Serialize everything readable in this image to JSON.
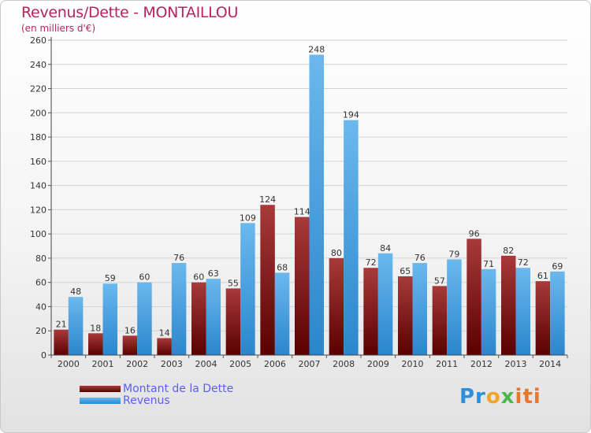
{
  "title": "Revenus/Dette - MONTAILLOU",
  "subtitle": "(en milliers d'€)",
  "colors": {
    "debt_top": "#a83a3a",
    "debt_bottom": "#5a0000",
    "revenue_top": "#6bb8ee",
    "revenue_bottom": "#2a86cc",
    "title": "#b5245e",
    "legend_text": "#5d5df0"
  },
  "legend": {
    "debt_label": "Montant de la Dette",
    "revenue_label": "Revenus"
  },
  "logo": {
    "parts": [
      "Pr",
      "o",
      "x",
      "iti"
    ]
  },
  "chart_data": {
    "type": "bar",
    "categories": [
      "2000",
      "2001",
      "2002",
      "2003",
      "2004",
      "2005",
      "2006",
      "2007",
      "2008",
      "2009",
      "2010",
      "2011",
      "2012",
      "2013",
      "2014"
    ],
    "series": [
      {
        "name": "Montant de la Dette",
        "values": [
          21,
          18,
          16,
          14,
          60,
          55,
          124,
          114,
          80,
          72,
          65,
          57,
          96,
          82,
          61
        ]
      },
      {
        "name": "Revenus",
        "values": [
          48,
          59,
          60,
          76,
          63,
          109,
          68,
          248,
          194,
          84,
          76,
          79,
          71,
          72,
          69
        ]
      }
    ],
    "ylim": [
      0,
      260
    ],
    "yticks": [
      0,
      20,
      40,
      60,
      80,
      100,
      120,
      140,
      160,
      180,
      200,
      220,
      240,
      260
    ],
    "grid": true,
    "legend_position": "bottom-left"
  }
}
